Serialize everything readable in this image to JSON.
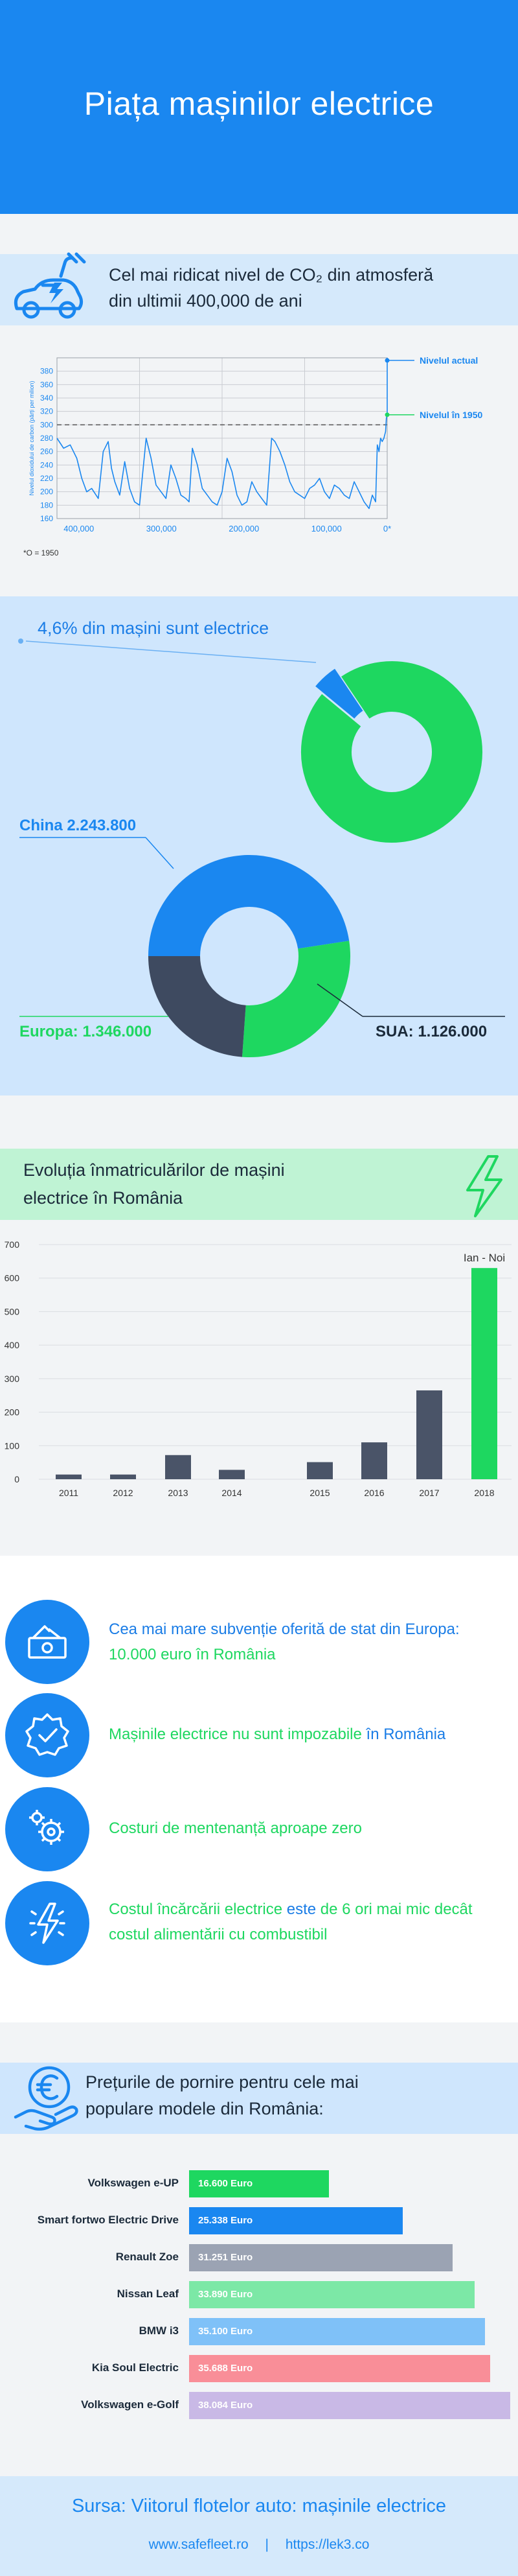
{
  "header": {
    "title": "Piața mașinilor electrice"
  },
  "co2": {
    "title_line1": "Cel mai ridicat nivel de CO₂ din atmosferă",
    "title_line2": "din ultimii 400,000 de ani",
    "note": "*O = 1950",
    "icon": "electric-car-plug-icon"
  },
  "share": {
    "label": "4,6% din mașini sunt electrice",
    "china": "China 2.243.800",
    "europe": "Europa: 1.346.000",
    "usa": "SUA: 1.126.000"
  },
  "registrations": {
    "title_line1": "Evoluția înmatriculărilor de mașini",
    "title_line2": "electrice în România",
    "icon": "lightning-bolt-icon"
  },
  "benefits": {
    "items": [
      {
        "icon": "money-icon",
        "text_a": "Cea mai mare subvenție oferită de stat din Europa: ",
        "text_b": "10.000 euro în România",
        "text_c": ""
      },
      {
        "icon": "verified-badge-icon",
        "text_a": "Mașinile electrice ",
        "text_b": "nu sunt impozabile",
        "text_c": " în România"
      },
      {
        "icon": "gears-icon",
        "text_a": "Costuri de mentenanță ",
        "text_b": "aproape zero",
        "text_c": ""
      },
      {
        "icon": "charging-bolt-icon",
        "text_a": "Costul încărcării electrice ",
        "text_b": "este ",
        "text_c": "de 6 ori mai mic decât costul alimentării cu combustibil"
      }
    ]
  },
  "prices": {
    "title_line1": "Prețurile de pornire pentru cele mai",
    "title_line2": "populare modele din România:",
    "icon": "euro-hand-icon"
  },
  "footer": {
    "source": "Sursa: Viitorul flotelor auto: mașinile electrice",
    "link1": "www.safefleet.ro",
    "separator": "|",
    "link2": "https://lek3.co"
  },
  "chart_data": [
    {
      "type": "line",
      "ylabel": "Nivelul dioxidului de carbon (părți per milion)",
      "x_ticks": [
        "400,000",
        "300,000",
        "200,000",
        "100,000",
        "0*"
      ],
      "y_ticks": [
        160,
        180,
        200,
        220,
        240,
        260,
        280,
        300,
        320,
        340,
        360,
        380
      ],
      "ylim": [
        160,
        400
      ],
      "reference_line": 300,
      "annotations": [
        "Nivelul actual",
        "Nivelul în 1950"
      ],
      "series": [
        {
          "x": [
            400,
            392,
            384,
            376,
            370,
            364,
            358,
            350,
            344,
            338,
            334,
            330,
            324,
            318,
            312,
            306,
            300,
            292,
            286,
            280,
            274,
            268,
            262,
            256,
            250,
            244,
            240,
            236,
            230,
            224,
            218,
            212,
            206,
            200,
            194,
            188,
            182,
            176,
            170,
            164,
            158,
            152,
            146,
            140,
            136,
            130,
            124,
            118,
            112,
            106,
            100,
            94,
            88,
            82,
            76,
            70,
            64,
            58,
            52,
            46,
            40,
            34,
            28,
            22,
            18,
            14,
            12,
            10,
            8,
            6,
            4,
            3,
            2,
            1,
            0,
            0
          ],
          "y": [
            280,
            265,
            270,
            250,
            220,
            200,
            205,
            190,
            260,
            275,
            235,
            215,
            195,
            245,
            205,
            185,
            180,
            280,
            250,
            210,
            200,
            190,
            240,
            220,
            195,
            190,
            185,
            265,
            240,
            205,
            195,
            185,
            180,
            200,
            250,
            230,
            195,
            180,
            185,
            215,
            200,
            190,
            180,
            280,
            275,
            260,
            240,
            215,
            200,
            195,
            190,
            205,
            210,
            220,
            200,
            190,
            210,
            205,
            195,
            190,
            215,
            200,
            185,
            175,
            195,
            185,
            270,
            260,
            280,
            275,
            280,
            285,
            290,
            310,
            315,
            400
          ]
        }
      ]
    },
    {
      "type": "pie",
      "title": "4,6% din mașini sunt electrice",
      "values": [
        4.6,
        95.4
      ],
      "colors": [
        "#1a87f0",
        "#1ed760"
      ]
    },
    {
      "type": "pie",
      "categories": [
        "China",
        "Europa",
        "SUA"
      ],
      "values": [
        2243800,
        1346000,
        1126000
      ],
      "labels": [
        "China 2.243.800",
        "Europa: 1.346.000",
        "SUA: 1.126.000"
      ],
      "colors": [
        "#1a87f0",
        "#1ed760",
        "#3e4a60"
      ]
    },
    {
      "type": "bar",
      "categories": [
        "2011",
        "2012",
        "2013",
        "2014",
        "2015",
        "2016",
        "2017",
        "2018"
      ],
      "values": [
        14,
        14,
        72,
        28,
        51,
        110,
        265,
        630
      ],
      "ylim": [
        0,
        700
      ],
      "y_ticks": [
        0,
        100,
        200,
        300,
        400,
        500,
        600,
        700
      ],
      "annotation": "Ian - Noi",
      "colors": [
        "#4a5468",
        "#4a5468",
        "#4a5468",
        "#4a5468",
        "#4a5468",
        "#4a5468",
        "#4a5468",
        "#1ed760"
      ]
    },
    {
      "type": "bar",
      "orientation": "horizontal",
      "categories": [
        "Volkswagen e-UP",
        "Smart fortwo Electric Drive",
        "Renault Zoe",
        "Nissan Leaf",
        "BMW i3",
        "Kia Soul Electric",
        "Volkswagen e-Golf"
      ],
      "values": [
        16600,
        25338,
        31251,
        33890,
        35100,
        35688,
        38084
      ],
      "labels": [
        "16.600 Euro",
        "25.338 Euro",
        "31.251 Euro",
        "33.890 Euro",
        "35.100 Euro",
        "35.688 Euro",
        "38.084 Euro"
      ],
      "colors": [
        "#1ed760",
        "#1a87f0",
        "#9ba3b3",
        "#7ce8a6",
        "#7fc1f8",
        "#f98e98",
        "#c9b9e6"
      ]
    }
  ]
}
